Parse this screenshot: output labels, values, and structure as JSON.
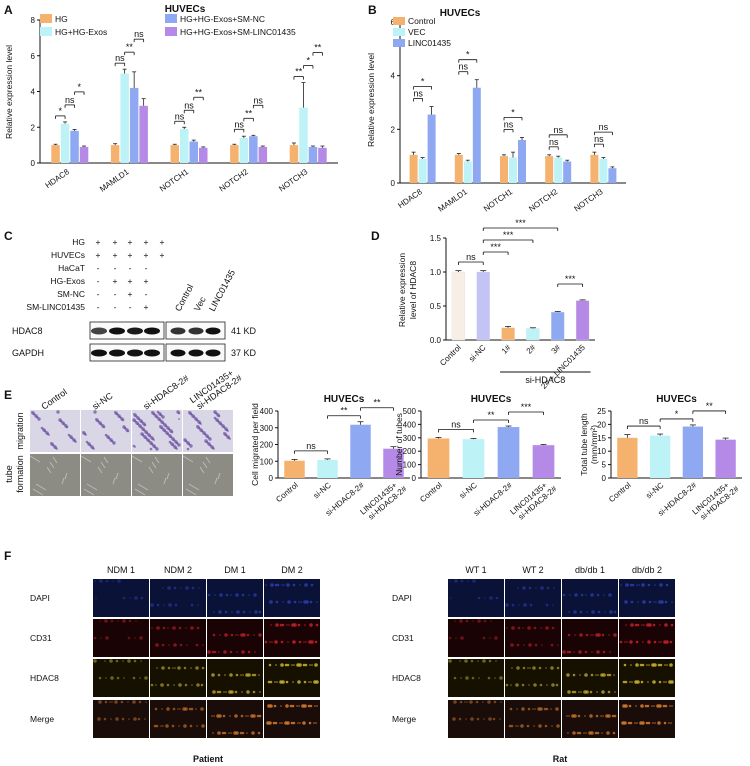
{
  "panel_labels": {
    "A": "A",
    "B": "B",
    "C": "C",
    "D": "D",
    "E": "E",
    "F": "F"
  },
  "colors": {
    "orange": "#F5B26E",
    "cyan": "#BDF3F6",
    "blue": "#8EA8F2",
    "purple": "#B589E6",
    "cream": "#F7EEE6",
    "lavender": "#C4C3F5",
    "violet": "#A688E0"
  },
  "chart_data": [
    {
      "id": "A",
      "type": "bar",
      "title": "HUVECs",
      "categories": [
        "HDAC8",
        "MAMLD1",
        "NOTCH1",
        "NOTCH2",
        "NOTCH3"
      ],
      "ylabel": "Relative expression level",
      "ylim": [
        0,
        8
      ],
      "yticks": [
        0,
        2,
        4,
        6,
        8
      ],
      "legend_position": "top",
      "series": [
        {
          "name": "HG",
          "color": "#F5B26E",
          "values": [
            1.0,
            1.0,
            1.0,
            1.0,
            1.0
          ],
          "err": [
            0.05,
            0.08,
            0.05,
            0.05,
            0.12
          ]
        },
        {
          "name": "HG+HG-Exos",
          "color": "#BDF3F6",
          "values": [
            2.2,
            5.0,
            1.9,
            1.4,
            3.1
          ],
          "err": [
            0.1,
            0.25,
            0.1,
            0.1,
            1.4
          ]
        },
        {
          "name": "HG+HG-Exos+SM-NC",
          "color": "#8EA8F2",
          "values": [
            1.8,
            4.2,
            1.2,
            1.5,
            0.9
          ],
          "err": [
            0.08,
            0.9,
            0.08,
            0.05,
            0.05
          ]
        },
        {
          "name": "HG+HG-Exos+SM-LINC01435",
          "color": "#B589E6",
          "values": [
            0.9,
            3.2,
            0.85,
            0.9,
            0.85
          ],
          "err": [
            0.05,
            0.4,
            0.05,
            0.05,
            0.1
          ]
        }
      ],
      "annotations": [
        "*",
        "ns",
        "*",
        "ns",
        "**",
        "ns",
        "ns",
        "ns",
        "**",
        "ns",
        "**",
        "ns",
        "**",
        "*",
        "**",
        "ns",
        "ns",
        "ns"
      ]
    },
    {
      "id": "B",
      "type": "bar",
      "title": "HUVECs",
      "categories": [
        "HDAC8",
        "MAMLD1",
        "NOTCH1",
        "NOTCH2",
        "NOTCH3"
      ],
      "ylabel": "Relative expression level",
      "ylim": [
        0,
        6
      ],
      "yticks": [
        0,
        2,
        4,
        6
      ],
      "legend_position": "top-left",
      "series": [
        {
          "name": "Control",
          "color": "#F5B26E",
          "values": [
            1.05,
            1.05,
            1.0,
            1.0,
            1.05
          ],
          "err": [
            0.1,
            0.05,
            0.05,
            0.05,
            0.1
          ]
        },
        {
          "name": "VEC",
          "color": "#BDF3F6",
          "values": [
            0.9,
            0.8,
            0.95,
            0.95,
            0.9
          ],
          "err": [
            0.05,
            0.05,
            0.2,
            0.05,
            0.05
          ]
        },
        {
          "name": "LINC01435",
          "color": "#8EA8F2",
          "values": [
            2.55,
            3.55,
            1.6,
            0.8,
            0.55
          ],
          "err": [
            0.3,
            0.3,
            0.1,
            0.05,
            0.05
          ]
        }
      ],
      "annotations": [
        "ns",
        "*",
        "ns",
        "*",
        "ns",
        "*",
        "ns",
        "ns",
        "ns",
        "ns"
      ]
    },
    {
      "id": "D",
      "type": "bar",
      "title": "",
      "categories": [
        "Control",
        "si-NC",
        "1#",
        "2#",
        "3#",
        "2# + LINC01435"
      ],
      "group_label": "si-HDAC8",
      "ylabel": "Relative expression level of HDAC8",
      "ylim": [
        0,
        1.5
      ],
      "yticks": [
        0.0,
        0.5,
        1.0,
        1.5
      ],
      "values": [
        1.0,
        1.0,
        0.18,
        0.17,
        0.41,
        0.58
      ],
      "err": [
        0.02,
        0.02,
        0.02,
        0.01,
        0.01,
        0.01
      ],
      "colors": [
        "#F7EEE6",
        "#C4C3F5",
        "#F5B26E",
        "#BDF3F6",
        "#8EA8F2",
        "#B589E6"
      ],
      "annotations": [
        "ns",
        "***",
        "***",
        "***",
        "***"
      ]
    },
    {
      "id": "E1",
      "type": "bar",
      "title": "HUVECs",
      "categories": [
        "Control",
        "si-NC",
        "si-HDAC8-2#",
        "LINC01435+ si-HDAC8-2#"
      ],
      "ylabel": "Cell migrated per field",
      "ylim": [
        0,
        400
      ],
      "yticks": [
        0,
        100,
        200,
        300,
        400
      ],
      "values": [
        103,
        108,
        318,
        175
      ],
      "err": [
        8,
        6,
        18,
        12
      ],
      "colors": [
        "#F5B26E",
        "#BDF3F6",
        "#8EA8F2",
        "#B589E6"
      ],
      "annotations": [
        "ns",
        "**",
        "**"
      ]
    },
    {
      "id": "E2",
      "type": "bar",
      "title": "HUVECs",
      "categories": [
        "Control",
        "si-NC",
        "si-HDAC8-2#",
        "LINC01435+ si-HDAC8-2#"
      ],
      "ylabel": "Number of tubes",
      "ylim": [
        0,
        500
      ],
      "yticks": [
        0,
        100,
        200,
        300,
        400,
        500
      ],
      "values": [
        295,
        290,
        380,
        245
      ],
      "err": [
        8,
        5,
        8,
        5
      ],
      "colors": [
        "#F5B26E",
        "#BDF3F6",
        "#8EA8F2",
        "#B589E6"
      ],
      "annotations": [
        "ns",
        "**",
        "***"
      ]
    },
    {
      "id": "E3",
      "type": "bar",
      "title": "HUVECs",
      "categories": [
        "Control",
        "si-NC",
        "si-HDAC8-2#",
        "LINC01435+ si-HDAC8-2#"
      ],
      "ylabel": "Total tube length (mm/mm²)",
      "ylim": [
        0,
        25
      ],
      "yticks": [
        0,
        5,
        10,
        15,
        20,
        25
      ],
      "values": [
        15.0,
        15.8,
        19.2,
        14.3
      ],
      "err": [
        1.2,
        0.6,
        0.6,
        0.6
      ],
      "colors": [
        "#F5B26E",
        "#BDF3F6",
        "#8EA8F2",
        "#B589E6"
      ],
      "annotations": [
        "ns",
        "*",
        "**"
      ]
    }
  ],
  "blot": {
    "rows": [
      {
        "label": "HG",
        "marks": [
          "+",
          "+",
          "+",
          "+",
          "+"
        ]
      },
      {
        "label": "HUVECs",
        "marks": [
          "+",
          "+",
          "+",
          "+",
          "+"
        ]
      },
      {
        "label": "HaCaT",
        "marks": [
          "-",
          "-",
          "-",
          "-",
          ""
        ]
      },
      {
        "label": "HG-Exos",
        "marks": [
          "-",
          "+",
          "+",
          "+",
          ""
        ]
      },
      {
        "label": "SM-NC",
        "marks": [
          "-",
          "-",
          "+",
          "-",
          ""
        ]
      },
      {
        "label": "SM-LINC01435",
        "marks": [
          "-",
          "-",
          "-",
          "+",
          ""
        ]
      }
    ],
    "rotated_labels": [
      "Control",
      "Vec",
      "LINC01435"
    ],
    "bands": [
      {
        "label": "HDAC8",
        "kd": "41 KD"
      },
      {
        "label": "GAPDH",
        "kd": "37 KD"
      }
    ]
  },
  "migration": {
    "columns": [
      "Control",
      "si-NC",
      "si-HDAC8-2#",
      "LINC01435+ si-HDAC8-2#"
    ],
    "rows": [
      "migration",
      "tube formation"
    ]
  },
  "fluorescence": {
    "patient": {
      "columns": [
        "NDM 1",
        "NDM 2",
        "DM 1",
        "DM 2"
      ],
      "footer": "Patient"
    },
    "rat": {
      "columns": [
        "WT 1",
        "WT 2",
        "db/db 1",
        "db/db 2"
      ],
      "footer": "Rat"
    },
    "rows": [
      "DAPI",
      "CD31",
      "HDAC8",
      "Merge"
    ]
  }
}
